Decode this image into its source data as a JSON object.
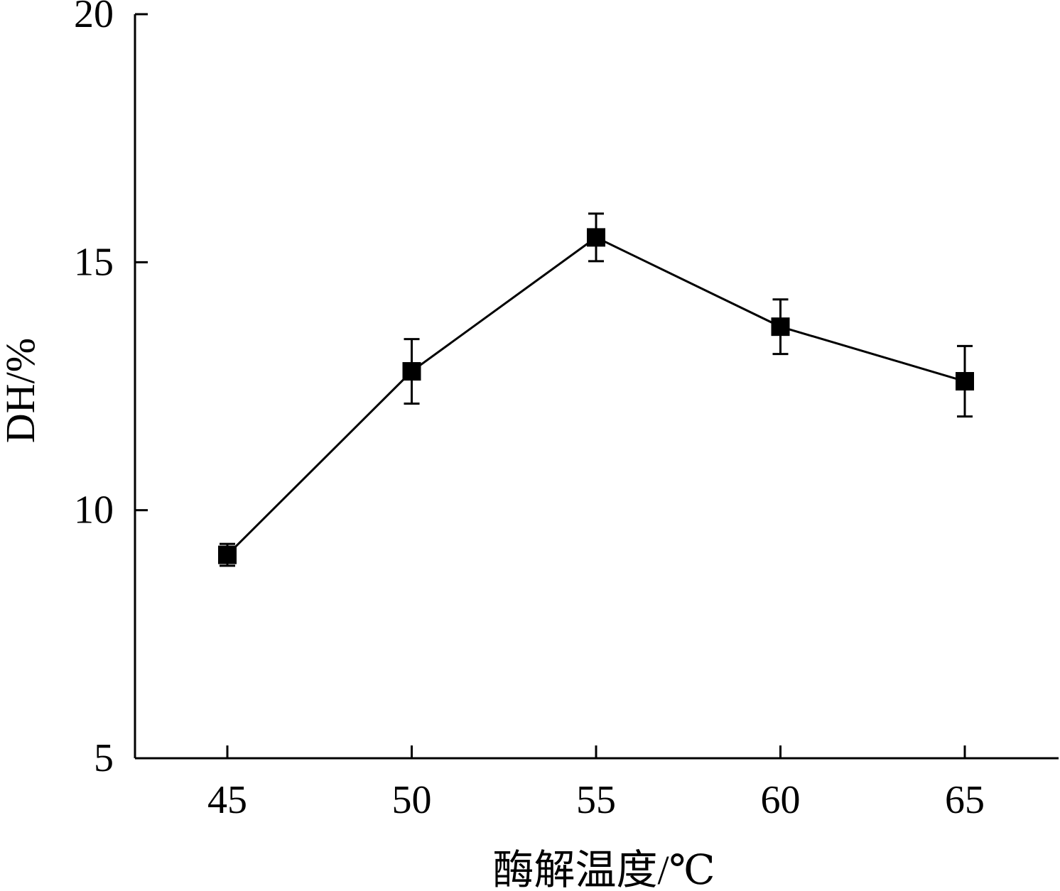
{
  "chart_data": {
    "type": "line",
    "title": "",
    "xlabel": "酶解温度/℃",
    "ylabel": "DH/%",
    "x": [
      45,
      50,
      55,
      60,
      65
    ],
    "x_ticks": [
      "45",
      "50",
      "55",
      "60",
      "65"
    ],
    "y_ticks": [
      "5",
      "10",
      "15",
      "20"
    ],
    "ylim": [
      5,
      20
    ],
    "grid": false,
    "legend": "none",
    "series": [
      {
        "values": [
          9.1,
          12.8,
          15.5,
          13.7,
          12.6
        ],
        "errors": [
          0.22,
          0.65,
          0.48,
          0.55,
          0.71
        ],
        "marker": "square",
        "color": "#000000"
      }
    ]
  }
}
